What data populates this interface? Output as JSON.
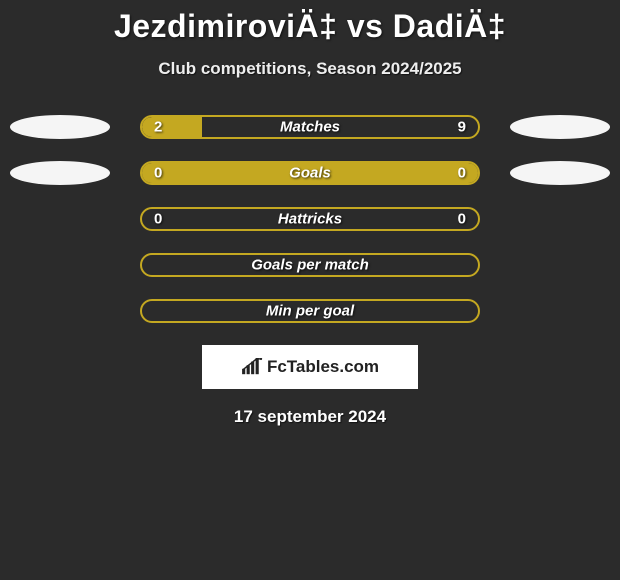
{
  "title": "JezdimiroviÄ‡ vs DadiÄ‡",
  "subtitle": "Club competitions, Season 2024/2025",
  "colors": {
    "background": "#2b2b2b",
    "bar_border": "#c4a821",
    "bar_fill": "#c4a821",
    "pill": "#f5f5f5",
    "text": "#ffffff"
  },
  "bars": [
    {
      "label": "Matches",
      "left_val": "2",
      "right_val": "9",
      "left_pct": 18,
      "right_pct": 0,
      "show_pill_left": true,
      "show_pill_right": true
    },
    {
      "label": "Goals",
      "left_val": "0",
      "right_val": "0",
      "left_pct": 100,
      "right_pct": 0,
      "show_pill_left": true,
      "show_pill_right": true,
      "full": true
    },
    {
      "label": "Hattricks",
      "left_val": "0",
      "right_val": "0",
      "left_pct": 0,
      "right_pct": 0,
      "show_pill_left": false,
      "show_pill_right": false
    },
    {
      "label": "Goals per match",
      "left_val": "",
      "right_val": "",
      "left_pct": 0,
      "right_pct": 0,
      "show_pill_left": false,
      "show_pill_right": false
    },
    {
      "label": "Min per goal",
      "left_val": "",
      "right_val": "",
      "left_pct": 0,
      "right_pct": 0,
      "show_pill_left": false,
      "show_pill_right": false
    }
  ],
  "logo_text": "FcTables.com",
  "date_text": "17 september 2024"
}
